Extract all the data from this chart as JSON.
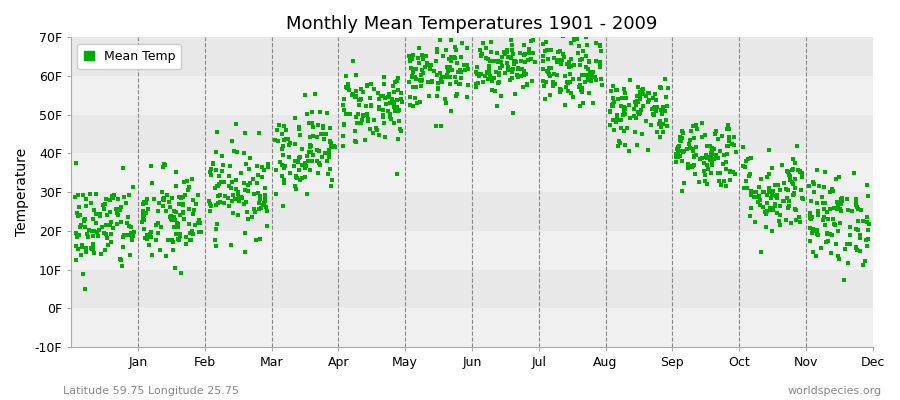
{
  "title": "Monthly Mean Temperatures 1901 - 2009",
  "ylabel": "Temperature",
  "xlabel_bottom_left": "Latitude 59.75 Longitude 25.75",
  "xlabel_bottom_right": "worldspecies.org",
  "dot_color": "#00aa00",
  "background_color": "#ffffff",
  "plot_bg_color": "#ffffff",
  "stripe_colors": [
    "#f0f0f0",
    "#e8e8e8"
  ],
  "ylim": [
    -10,
    70
  ],
  "yticks": [
    -10,
    0,
    10,
    20,
    30,
    40,
    50,
    60,
    70
  ],
  "ytick_labels": [
    "-10F",
    "0F",
    "10F",
    "20F",
    "30F",
    "40F",
    "50F",
    "60F",
    "70F"
  ],
  "months": [
    "Jan",
    "Feb",
    "Mar",
    "Apr",
    "May",
    "Jun",
    "Jul",
    "Aug",
    "Sep",
    "Oct",
    "Nov",
    "Dec"
  ],
  "legend_label": "Mean Temp",
  "monthly_mean_F": [
    21.0,
    23.0,
    31.0,
    41.0,
    52.0,
    60.0,
    63.5,
    61.0,
    51.0,
    40.0,
    30.0,
    23.0
  ],
  "monthly_std_F": [
    6.0,
    6.5,
    6.0,
    5.5,
    5.0,
    4.5,
    4.5,
    4.5,
    4.5,
    4.5,
    5.5,
    6.0
  ],
  "n_years": 109,
  "seed": 42
}
